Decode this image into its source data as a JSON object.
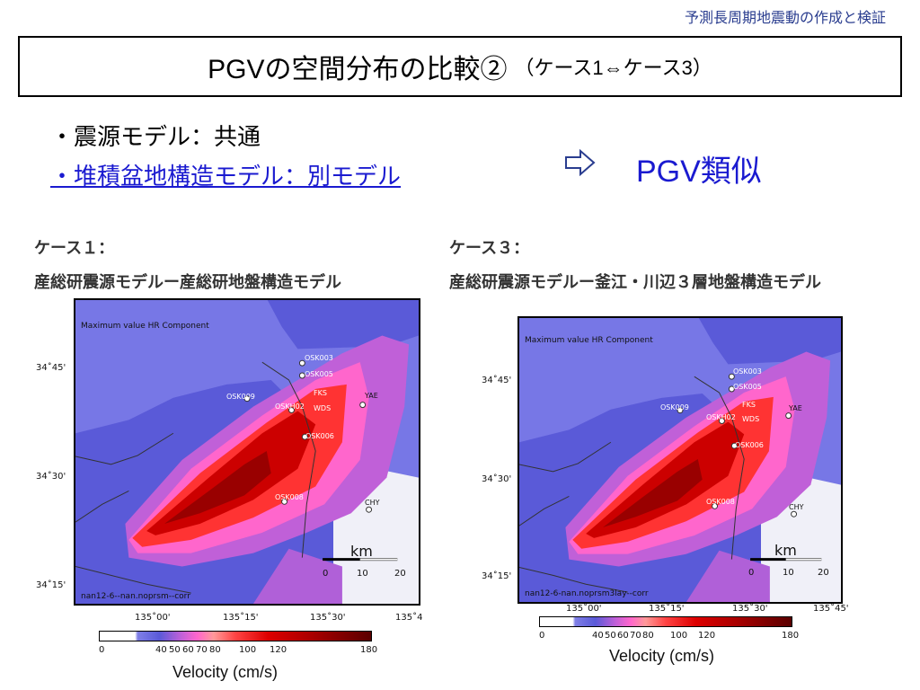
{
  "header": {
    "subtitle": "予測長周期地震動の作成と検証"
  },
  "title": {
    "main": "PGVの空間分布の比較②",
    "sub": "（ケース1⇔ケース3）"
  },
  "bullets": [
    "・震源モデル：共通",
    "・堆積盆地構造モデル：別モデル"
  ],
  "conclusion": "PGV類似",
  "colors": {
    "link_blue": "#1a1ad0",
    "header_blue": "#2a3d8f",
    "sea": "#5a5ad8"
  },
  "panels": [
    {
      "case_label": "ケース１：",
      "model_label": "産総研震源モデルー産総研地盤構造モデル",
      "map_title": "Maximum value HR Component",
      "footer": "nan12-6--nan.noprsm--corr",
      "lat_ticks": [
        "34˚45'",
        "34˚30'",
        "34˚15'"
      ],
      "lon_ticks": [
        "135˚00'",
        "135˚15'",
        "135˚30'",
        "135˚4"
      ],
      "stations": [
        "OSK003",
        "OSK005",
        "OSK009",
        "OSKH02",
        "FKS",
        "WDS",
        "OSK006",
        "OSK008",
        "YAE",
        "CHY"
      ],
      "scale": {
        "unit": "km",
        "ticks": [
          "0",
          "10",
          "20"
        ]
      },
      "colorbar_ticks": [
        "0",
        "40",
        "50",
        "60",
        "70",
        "80",
        "100",
        "120",
        "180"
      ],
      "colorbar_label": "Velocity (cm/s)"
    },
    {
      "case_label": "ケース３：",
      "model_label": "産総研震源モデルー釜江・川辺３層地盤構造モデル",
      "map_title": "Maximum value HR Component",
      "footer": "nan12-6-nan.noprsm3lay--corr",
      "lat_ticks": [
        "34˚45'",
        "34˚30'",
        "34˚15'"
      ],
      "lon_ticks": [
        "135˚00'",
        "135˚15'",
        "135˚30'",
        "135˚45'"
      ],
      "stations": [
        "OSK003",
        "OSK005",
        "OSK009",
        "OSKH02",
        "FKS",
        "WDS",
        "OSK006",
        "OSK008",
        "YAE",
        "CHY"
      ],
      "scale": {
        "unit": "km",
        "ticks": [
          "0",
          "10",
          "20"
        ]
      },
      "colorbar_ticks": [
        "0",
        "40",
        "50",
        "60",
        "70",
        "80",
        "100",
        "120",
        "180"
      ],
      "colorbar_label": "Velocity (cm/s)"
    }
  ]
}
